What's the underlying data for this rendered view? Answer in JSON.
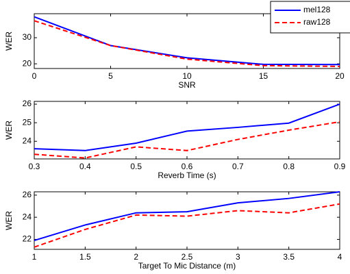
{
  "chart_data": [
    {
      "type": "line",
      "x_label": "SNR",
      "y_label": "WER",
      "x": [
        0,
        5,
        10,
        15,
        20
      ],
      "series": [
        {
          "name": "mel128",
          "color": "#0000ff",
          "dashed": false,
          "values": [
            38,
            27,
            22.3,
            19.8,
            19.7
          ]
        },
        {
          "name": "raw128",
          "color": "#ff0000",
          "dashed": true,
          "values": [
            36.5,
            27,
            21.8,
            19.3,
            19.0
          ]
        }
      ],
      "xlim": [
        0,
        20
      ],
      "xticks": [
        0,
        5,
        10,
        15,
        20
      ],
      "ylim": [
        18.2,
        39.2
      ],
      "yticks": [
        20,
        30
      ],
      "legend": "upper right"
    },
    {
      "type": "line",
      "x_label": "Reverb Time (s)",
      "y_label": "WER",
      "x": [
        0.3,
        0.4,
        0.5,
        0.6,
        0.7,
        0.8,
        0.9
      ],
      "series": [
        {
          "color": "#0000ff",
          "dashed": false,
          "values": [
            23.6,
            23.5,
            23.9,
            24.55,
            24.75,
            24.98,
            26.0
          ]
        },
        {
          "color": "#ff0000",
          "dashed": true,
          "values": [
            23.3,
            23.1,
            23.7,
            23.5,
            24.1,
            24.6,
            25.05
          ]
        }
      ],
      "xlim": [
        0.3,
        0.9
      ],
      "xticks": [
        0.3,
        0.4,
        0.5,
        0.6,
        0.7,
        0.8,
        0.9
      ],
      "ylim": [
        23.05,
        26.15
      ],
      "yticks": [
        24,
        25,
        26
      ]
    },
    {
      "type": "line",
      "x_label": "Target To Mic Distance (m)",
      "y_label": "WER",
      "x": [
        1,
        1.5,
        2,
        2.5,
        3,
        3.5,
        4
      ],
      "series": [
        {
          "color": "#0000ff",
          "dashed": false,
          "values": [
            21.9,
            23.3,
            24.4,
            24.5,
            25.3,
            25.7,
            26.3
          ]
        },
        {
          "color": "#ff0000",
          "dashed": true,
          "values": [
            21.3,
            22.9,
            24.2,
            24.1,
            24.6,
            24.4,
            25.2
          ]
        }
      ],
      "xlim": [
        1,
        4
      ],
      "xticks": [
        1,
        1.5,
        2,
        2.5,
        3,
        3.5,
        4
      ],
      "ylim": [
        21.1,
        26.3
      ],
      "yticks": [
        22,
        24,
        26
      ]
    }
  ]
}
